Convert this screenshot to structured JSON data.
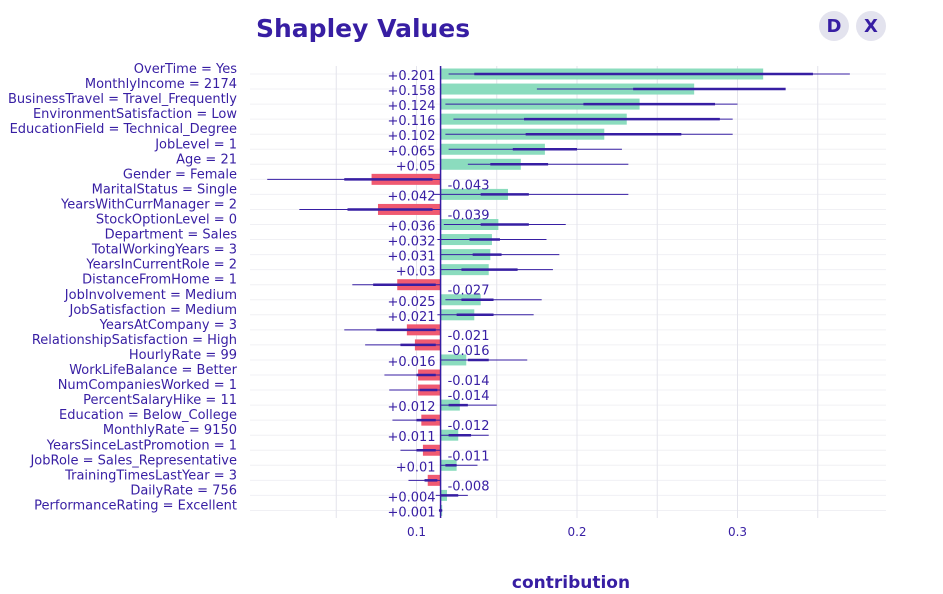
{
  "header": {
    "title": "Shapley Values"
  },
  "buttons": {
    "d_label": "D",
    "x_label": "X"
  },
  "colors": {
    "positive": "#8bdcbe",
    "negative": "#f05a71",
    "whisker": "#371ea3",
    "text": "#371ea3",
    "grid": "#f0f0f4"
  },
  "chart_data": {
    "type": "bar",
    "title": "Shapley Values",
    "xlabel": "contribution",
    "baseline": 0.115,
    "xlim": [
      0.0,
      0.37
    ],
    "xticks": [
      0.1,
      0.2,
      0.3
    ],
    "tick_labels": [
      "0.1",
      "0.2",
      "0.3"
    ],
    "categories": [
      "OverTime = Yes",
      "MonthlyIncome = 2174",
      "BusinessTravel = Travel_Frequently",
      "EnvironmentSatisfaction = Low",
      "EducationField = Technical_Degree",
      "JobLevel = 1",
      "Age = 21",
      "Gender = Female",
      "MaritalStatus = Single",
      "YearsWithCurrManager = 2",
      "StockOptionLevel = 0",
      "Department = Sales",
      "TotalWorkingYears = 3",
      "YearsInCurrentRole = 2",
      "DistanceFromHome = 1",
      "JobInvolvement = Medium",
      "JobSatisfaction = Medium",
      "YearsAtCompany = 3",
      "RelationshipSatisfaction = High",
      "HourlyRate = 99",
      "WorkLifeBalance = Better",
      "NumCompaniesWorked = 1",
      "PercentSalaryHike = 11",
      "Education = Below_College",
      "MonthlyRate = 9150",
      "YearsSinceLastPromotion = 1",
      "JobRole = Sales_Representative",
      "TrainingTimesLastYear = 3",
      "DailyRate = 756",
      "PerformanceRating = Excellent"
    ],
    "values": [
      0.201,
      0.158,
      0.124,
      0.116,
      0.102,
      0.065,
      0.05,
      -0.043,
      0.042,
      -0.039,
      0.036,
      0.032,
      0.031,
      0.03,
      -0.027,
      0.025,
      0.021,
      -0.021,
      -0.016,
      0.016,
      -0.014,
      -0.014,
      0.012,
      -0.012,
      0.011,
      -0.011,
      0.01,
      -0.008,
      0.004,
      0.001
    ],
    "value_labels": [
      "+0.201",
      "+0.158",
      "+0.124",
      "+0.116",
      "+0.102",
      "+0.065",
      "+0.05",
      "-0.043",
      "+0.042",
      "-0.039",
      "+0.036",
      "+0.032",
      "+0.031",
      "+0.03",
      "-0.027",
      "+0.025",
      "+0.021",
      "-0.021",
      "-0.016",
      "+0.016",
      "-0.014",
      "-0.014",
      "+0.012",
      "-0.012",
      "+0.011",
      "-0.011",
      "+0.01",
      "-0.008",
      "+0.004",
      "+0.001"
    ],
    "whisker_thin": [
      [
        0.12,
        0.37
      ],
      [
        0.175,
        0.306
      ],
      [
        0.118,
        0.3
      ],
      [
        0.123,
        0.297
      ],
      [
        0.118,
        0.297
      ],
      [
        0.12,
        0.228
      ],
      [
        0.132,
        0.232
      ],
      [
        0.007,
        0.115
      ],
      [
        0.11,
        0.232
      ],
      [
        0.027,
        0.115
      ],
      [
        0.117,
        0.193
      ],
      [
        0.113,
        0.181
      ],
      [
        0.115,
        0.189
      ],
      [
        0.115,
        0.185
      ],
      [
        0.06,
        0.115
      ],
      [
        0.118,
        0.178
      ],
      [
        0.113,
        0.173
      ],
      [
        0.055,
        0.115
      ],
      [
        0.068,
        0.115
      ],
      [
        0.115,
        0.169
      ],
      [
        0.08,
        0.115
      ],
      [
        0.083,
        0.115
      ],
      [
        0.115,
        0.15
      ],
      [
        0.085,
        0.115
      ],
      [
        0.115,
        0.145
      ],
      [
        0.09,
        0.115
      ],
      [
        0.115,
        0.138
      ],
      [
        0.095,
        0.115
      ],
      [
        0.112,
        0.132
      ],
      [
        0.114,
        0.116
      ]
    ],
    "whisker_thick": [
      [
        0.136,
        0.347
      ],
      [
        0.235,
        0.33
      ],
      [
        0.204,
        0.286
      ],
      [
        0.167,
        0.289
      ],
      [
        0.168,
        0.265
      ],
      [
        0.16,
        0.2
      ],
      [
        0.146,
        0.182
      ],
      [
        0.055,
        0.11
      ],
      [
        0.14,
        0.17
      ],
      [
        0.057,
        0.11
      ],
      [
        0.14,
        0.17
      ],
      [
        0.133,
        0.152
      ],
      [
        0.135,
        0.153
      ],
      [
        0.128,
        0.163
      ],
      [
        0.073,
        0.112
      ],
      [
        0.128,
        0.148
      ],
      [
        0.125,
        0.148
      ],
      [
        0.075,
        0.112
      ],
      [
        0.09,
        0.112
      ],
      [
        0.132,
        0.145
      ],
      [
        0.1,
        0.112
      ],
      [
        0.102,
        0.113
      ],
      [
        0.12,
        0.132
      ],
      [
        0.1,
        0.112
      ],
      [
        0.12,
        0.134
      ],
      [
        0.1,
        0.112
      ],
      [
        0.118,
        0.125
      ],
      [
        0.105,
        0.113
      ],
      [
        0.115,
        0.126
      ],
      [
        0.114,
        0.116
      ]
    ]
  }
}
